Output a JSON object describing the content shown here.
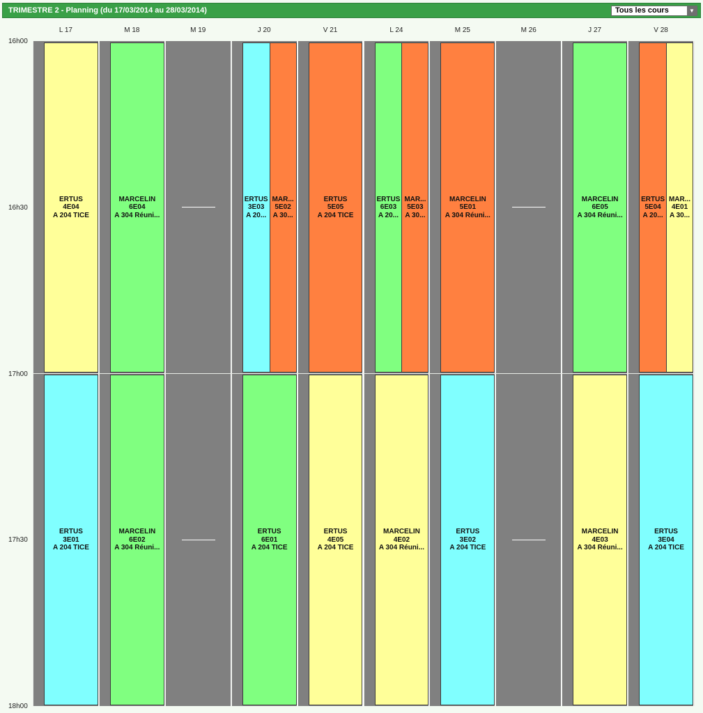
{
  "header": {
    "title": "TRIMESTRE 2 - Planning (du 17/03/2014 au 28/03/2014)",
    "filter_value": "Tous les cours"
  },
  "days": [
    "L 17",
    "M 18",
    "M 19",
    "J 20",
    "V 21",
    "L 24",
    "M 25",
    "M 26",
    "J 27",
    "V 28"
  ],
  "times": [
    "16h00",
    "16h30",
    "17h00",
    "17h30",
    "18h00"
  ],
  "colors": {
    "yellow": "#ffff99",
    "green": "#80ff80",
    "cyan": "#80ffff",
    "orange": "#ff8040",
    "empty": "#808080"
  },
  "courses": [
    {
      "day": 0,
      "slot": 0,
      "sub": 0,
      "subs": 1,
      "color": "yellow",
      "teacher": "ERTUS",
      "group": "4E04",
      "room": "A 204 TICE"
    },
    {
      "day": 1,
      "slot": 0,
      "sub": 0,
      "subs": 1,
      "color": "green",
      "teacher": "MARCELIN",
      "group": "6E04",
      "room": "A 304 Réuni..."
    },
    {
      "day": 3,
      "slot": 0,
      "sub": 0,
      "subs": 2,
      "color": "cyan",
      "teacher": "ERTUS",
      "group": "3E03",
      "room": "A 20..."
    },
    {
      "day": 3,
      "slot": 0,
      "sub": 1,
      "subs": 2,
      "color": "orange",
      "teacher": "MAR...",
      "group": "5E02",
      "room": "A 30..."
    },
    {
      "day": 4,
      "slot": 0,
      "sub": 0,
      "subs": 1,
      "color": "orange",
      "teacher": "ERTUS",
      "group": "5E05",
      "room": "A 204 TICE"
    },
    {
      "day": 5,
      "slot": 0,
      "sub": 0,
      "subs": 2,
      "color": "green",
      "teacher": "ERTUS",
      "group": "6E03",
      "room": "A 20..."
    },
    {
      "day": 5,
      "slot": 0,
      "sub": 1,
      "subs": 2,
      "color": "orange",
      "teacher": "MAR...",
      "group": "5E03",
      "room": "A 30..."
    },
    {
      "day": 6,
      "slot": 0,
      "sub": 0,
      "subs": 1,
      "color": "orange",
      "teacher": "MARCELIN",
      "group": "5E01",
      "room": "A 304 Réuni..."
    },
    {
      "day": 8,
      "slot": 0,
      "sub": 0,
      "subs": 1,
      "color": "green",
      "teacher": "MARCELIN",
      "group": "6E05",
      "room": "A 304 Réuni..."
    },
    {
      "day": 9,
      "slot": 0,
      "sub": 0,
      "subs": 2,
      "color": "orange",
      "teacher": "ERTUS",
      "group": "5E04",
      "room": "A 20..."
    },
    {
      "day": 9,
      "slot": 0,
      "sub": 1,
      "subs": 2,
      "color": "yellow",
      "teacher": "MAR...",
      "group": "4E01",
      "room": "A 30..."
    },
    {
      "day": 0,
      "slot": 1,
      "sub": 0,
      "subs": 1,
      "color": "cyan",
      "teacher": "ERTUS",
      "group": "3E01",
      "room": "A 204 TICE"
    },
    {
      "day": 1,
      "slot": 1,
      "sub": 0,
      "subs": 1,
      "color": "green",
      "teacher": "MARCELIN",
      "group": "6E02",
      "room": "A 304 Réuni..."
    },
    {
      "day": 3,
      "slot": 1,
      "sub": 0,
      "subs": 1,
      "color": "green",
      "teacher": "ERTUS",
      "group": "6E01",
      "room": "A 204 TICE"
    },
    {
      "day": 4,
      "slot": 1,
      "sub": 0,
      "subs": 1,
      "color": "yellow",
      "teacher": "ERTUS",
      "group": "4E05",
      "room": "A 204 TICE"
    },
    {
      "day": 5,
      "slot": 1,
      "sub": 0,
      "subs": 1,
      "color": "yellow",
      "teacher": "MARCELIN",
      "group": "4E02",
      "room": "A 304 Réuni..."
    },
    {
      "day": 6,
      "slot": 1,
      "sub": 0,
      "subs": 1,
      "color": "cyan",
      "teacher": "ERTUS",
      "group": "3E02",
      "room": "A 204 TICE"
    },
    {
      "day": 8,
      "slot": 1,
      "sub": 0,
      "subs": 1,
      "color": "yellow",
      "teacher": "MARCELIN",
      "group": "4E03",
      "room": "A 304 Réuni..."
    },
    {
      "day": 9,
      "slot": 1,
      "sub": 0,
      "subs": 1,
      "color": "cyan",
      "teacher": "ERTUS",
      "group": "3E04",
      "room": "A 204 TICE"
    }
  ],
  "empty_days": [
    2,
    7
  ]
}
